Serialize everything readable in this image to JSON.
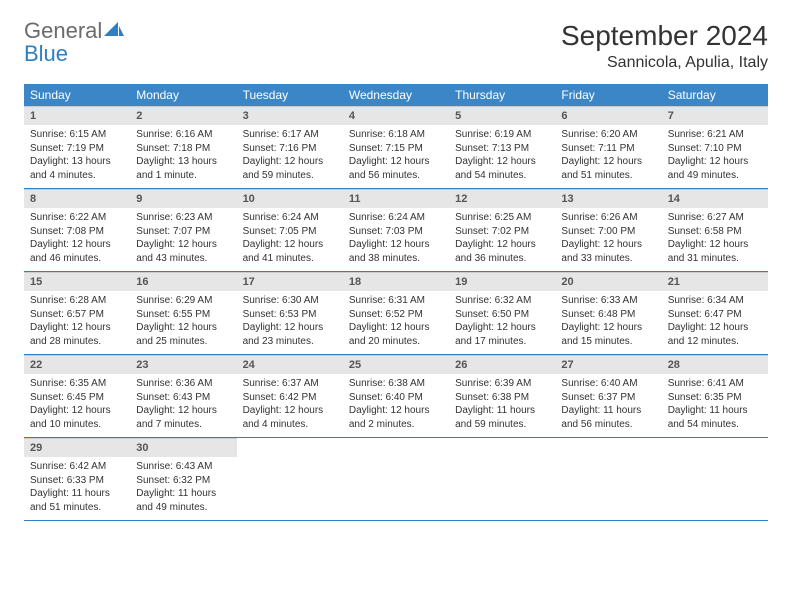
{
  "brand": {
    "word1": "General",
    "word2": "Blue"
  },
  "title": "September 2024",
  "location": "Sannicola, Apulia, Italy",
  "colors": {
    "header_bg": "#3b86c7",
    "header_text": "#ffffff",
    "rule": "#2f7fc2",
    "daynum_bg": "#e6e6e6",
    "logo_gray": "#6b6b6b",
    "logo_blue": "#2f7fc2"
  },
  "weekdays": [
    "Sunday",
    "Monday",
    "Tuesday",
    "Wednesday",
    "Thursday",
    "Friday",
    "Saturday"
  ],
  "days": [
    {
      "n": "1",
      "sr": "6:15 AM",
      "ss": "7:19 PM",
      "dl": "13 hours and 4 minutes."
    },
    {
      "n": "2",
      "sr": "6:16 AM",
      "ss": "7:18 PM",
      "dl": "13 hours and 1 minute."
    },
    {
      "n": "3",
      "sr": "6:17 AM",
      "ss": "7:16 PM",
      "dl": "12 hours and 59 minutes."
    },
    {
      "n": "4",
      "sr": "6:18 AM",
      "ss": "7:15 PM",
      "dl": "12 hours and 56 minutes."
    },
    {
      "n": "5",
      "sr": "6:19 AM",
      "ss": "7:13 PM",
      "dl": "12 hours and 54 minutes."
    },
    {
      "n": "6",
      "sr": "6:20 AM",
      "ss": "7:11 PM",
      "dl": "12 hours and 51 minutes."
    },
    {
      "n": "7",
      "sr": "6:21 AM",
      "ss": "7:10 PM",
      "dl": "12 hours and 49 minutes."
    },
    {
      "n": "8",
      "sr": "6:22 AM",
      "ss": "7:08 PM",
      "dl": "12 hours and 46 minutes."
    },
    {
      "n": "9",
      "sr": "6:23 AM",
      "ss": "7:07 PM",
      "dl": "12 hours and 43 minutes."
    },
    {
      "n": "10",
      "sr": "6:24 AM",
      "ss": "7:05 PM",
      "dl": "12 hours and 41 minutes."
    },
    {
      "n": "11",
      "sr": "6:24 AM",
      "ss": "7:03 PM",
      "dl": "12 hours and 38 minutes."
    },
    {
      "n": "12",
      "sr": "6:25 AM",
      "ss": "7:02 PM",
      "dl": "12 hours and 36 minutes."
    },
    {
      "n": "13",
      "sr": "6:26 AM",
      "ss": "7:00 PM",
      "dl": "12 hours and 33 minutes."
    },
    {
      "n": "14",
      "sr": "6:27 AM",
      "ss": "6:58 PM",
      "dl": "12 hours and 31 minutes."
    },
    {
      "n": "15",
      "sr": "6:28 AM",
      "ss": "6:57 PM",
      "dl": "12 hours and 28 minutes."
    },
    {
      "n": "16",
      "sr": "6:29 AM",
      "ss": "6:55 PM",
      "dl": "12 hours and 25 minutes."
    },
    {
      "n": "17",
      "sr": "6:30 AM",
      "ss": "6:53 PM",
      "dl": "12 hours and 23 minutes."
    },
    {
      "n": "18",
      "sr": "6:31 AM",
      "ss": "6:52 PM",
      "dl": "12 hours and 20 minutes."
    },
    {
      "n": "19",
      "sr": "6:32 AM",
      "ss": "6:50 PM",
      "dl": "12 hours and 17 minutes."
    },
    {
      "n": "20",
      "sr": "6:33 AM",
      "ss": "6:48 PM",
      "dl": "12 hours and 15 minutes."
    },
    {
      "n": "21",
      "sr": "6:34 AM",
      "ss": "6:47 PM",
      "dl": "12 hours and 12 minutes."
    },
    {
      "n": "22",
      "sr": "6:35 AM",
      "ss": "6:45 PM",
      "dl": "12 hours and 10 minutes."
    },
    {
      "n": "23",
      "sr": "6:36 AM",
      "ss": "6:43 PM",
      "dl": "12 hours and 7 minutes."
    },
    {
      "n": "24",
      "sr": "6:37 AM",
      "ss": "6:42 PM",
      "dl": "12 hours and 4 minutes."
    },
    {
      "n": "25",
      "sr": "6:38 AM",
      "ss": "6:40 PM",
      "dl": "12 hours and 2 minutes."
    },
    {
      "n": "26",
      "sr": "6:39 AM",
      "ss": "6:38 PM",
      "dl": "11 hours and 59 minutes."
    },
    {
      "n": "27",
      "sr": "6:40 AM",
      "ss": "6:37 PM",
      "dl": "11 hours and 56 minutes."
    },
    {
      "n": "28",
      "sr": "6:41 AM",
      "ss": "6:35 PM",
      "dl": "11 hours and 54 minutes."
    },
    {
      "n": "29",
      "sr": "6:42 AM",
      "ss": "6:33 PM",
      "dl": "11 hours and 51 minutes."
    },
    {
      "n": "30",
      "sr": "6:43 AM",
      "ss": "6:32 PM",
      "dl": "11 hours and 49 minutes."
    }
  ],
  "labels": {
    "sunrise": "Sunrise: ",
    "sunset": "Sunset: ",
    "daylight": "Daylight: "
  }
}
